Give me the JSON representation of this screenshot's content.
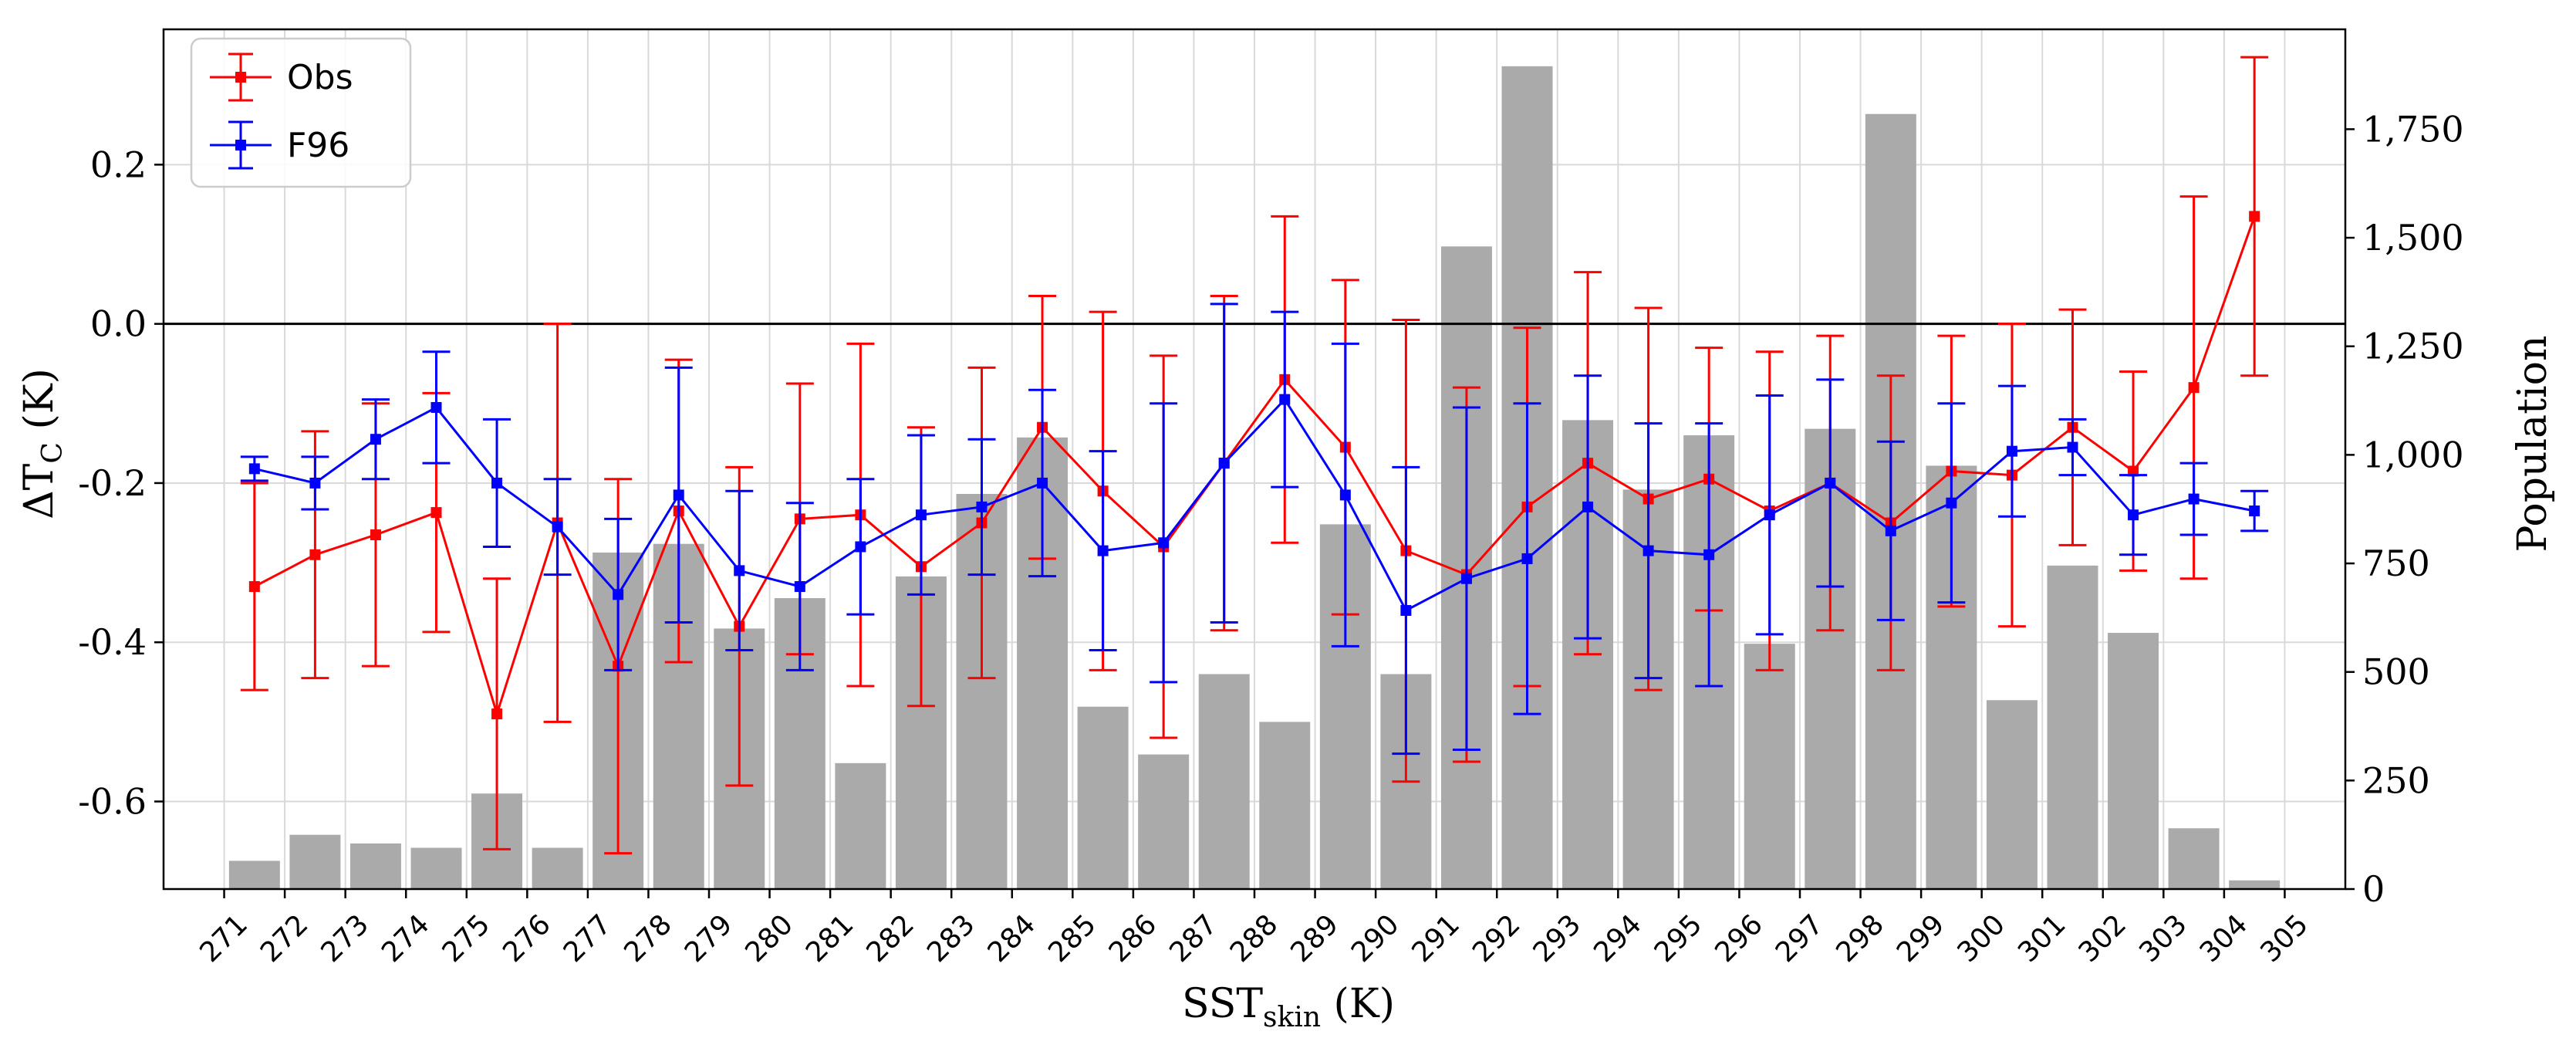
{
  "chart_data": {
    "type": "bar+line",
    "xlabel_main": "SST",
    "xlabel_sub": "skin",
    "xlabel_unit": " (K)",
    "ylabel_main": "ΔT",
    "ylabel_sub": "C",
    "ylabel_unit": " (K)",
    "y2label": "Population",
    "x_ticks": [
      271,
      272,
      273,
      274,
      275,
      276,
      277,
      278,
      279,
      280,
      281,
      282,
      283,
      284,
      285,
      286,
      287,
      288,
      289,
      290,
      291,
      292,
      293,
      294,
      295,
      296,
      297,
      298,
      299,
      300,
      301,
      302,
      303,
      304,
      305
    ],
    "xlim": [
      270,
      306
    ],
    "ylim": [
      -0.71,
      0.37
    ],
    "y_ticks": [
      -0.6,
      -0.4,
      -0.2,
      0.0,
      0.2
    ],
    "y_tick_labels": [
      "-0.6",
      "-0.4",
      "-0.2",
      "0.0",
      "0.2"
    ],
    "y2lim": [
      0,
      1980
    ],
    "y2_ticks": [
      0,
      250,
      500,
      750,
      1000,
      1250,
      1500,
      1750
    ],
    "y2_tick_labels": [
      "0",
      "250",
      "500",
      "750",
      "1,000",
      "1,250",
      "1,500",
      "1,750"
    ],
    "zero_line": 0.0,
    "grid": true,
    "legend_position": "top-left",
    "bars": {
      "x": [
        271.5,
        272.5,
        273.5,
        274.5,
        275.5,
        276.5,
        277.5,
        278.5,
        279.5,
        280.5,
        281.5,
        282.5,
        283.5,
        284.5,
        285.5,
        286.5,
        287.5,
        288.5,
        289.5,
        290.5,
        291.5,
        292.5,
        293.5,
        294.5,
        295.5,
        296.5,
        297.5,
        298.5,
        299.5,
        300.5,
        301.5,
        302.5,
        303.5,
        304.5
      ],
      "population": [
        65,
        125,
        105,
        95,
        220,
        95,
        775,
        795,
        600,
        670,
        290,
        720,
        910,
        1040,
        420,
        310,
        495,
        385,
        840,
        495,
        1480,
        1895,
        1080,
        920,
        1045,
        565,
        1060,
        1785,
        975,
        435,
        745,
        590,
        140,
        20
      ],
      "color": "#aaaaaa"
    },
    "series": [
      {
        "name": "Obs",
        "color": "#ff0000",
        "x": [
          271.5,
          272.5,
          273.5,
          274.5,
          275.5,
          276.5,
          277.5,
          278.5,
          279.5,
          280.5,
          281.5,
          282.5,
          283.5,
          284.5,
          285.5,
          286.5,
          287.5,
          288.5,
          289.5,
          290.5,
          291.5,
          292.5,
          293.5,
          294.5,
          295.5,
          296.5,
          297.5,
          298.5,
          299.5,
          300.5,
          301.5,
          302.5,
          303.5,
          304.5
        ],
        "y": [
          -0.33,
          -0.29,
          -0.265,
          -0.237,
          -0.49,
          -0.25,
          -0.43,
          -0.235,
          -0.38,
          -0.245,
          -0.24,
          -0.305,
          -0.25,
          -0.13,
          -0.21,
          -0.28,
          -0.175,
          -0.07,
          -0.155,
          -0.285,
          -0.315,
          -0.23,
          -0.175,
          -0.22,
          -0.195,
          -0.235,
          -0.2,
          -0.25,
          -0.185,
          -0.19,
          -0.13,
          -0.185,
          -0.08,
          0.135
        ],
        "err": [
          0.13,
          0.155,
          0.165,
          0.15,
          0.17,
          0.25,
          0.235,
          0.19,
          0.2,
          0.17,
          0.215,
          0.175,
          0.195,
          0.165,
          0.225,
          0.24,
          0.21,
          0.205,
          0.21,
          0.29,
          0.235,
          0.225,
          0.24,
          0.24,
          0.165,
          0.2,
          0.185,
          0.185,
          0.17,
          0.19,
          0.148,
          0.125,
          0.24,
          0.2
        ]
      },
      {
        "name": "F96",
        "color": "#0000ff",
        "x": [
          271.5,
          272.5,
          273.5,
          274.5,
          275.5,
          276.5,
          277.5,
          278.5,
          279.5,
          280.5,
          281.5,
          282.5,
          283.5,
          284.5,
          285.5,
          286.5,
          287.5,
          288.5,
          289.5,
          290.5,
          291.5,
          292.5,
          293.5,
          294.5,
          295.5,
          296.5,
          297.5,
          298.5,
          299.5,
          300.5,
          301.5,
          302.5,
          303.5,
          304.5
        ],
        "y": [
          -0.182,
          -0.2,
          -0.145,
          -0.105,
          -0.2,
          -0.255,
          -0.34,
          -0.215,
          -0.31,
          -0.33,
          -0.28,
          -0.24,
          -0.23,
          -0.2,
          -0.285,
          -0.275,
          -0.175,
          -0.095,
          -0.215,
          -0.36,
          -0.32,
          -0.295,
          -0.23,
          -0.285,
          -0.29,
          -0.24,
          -0.2,
          -0.26,
          -0.225,
          -0.16,
          -0.155,
          -0.24,
          -0.22,
          -0.235
        ],
        "err": [
          0.015,
          0.033,
          0.05,
          0.07,
          0.08,
          0.06,
          0.095,
          0.16,
          0.1,
          0.105,
          0.085,
          0.1,
          0.085,
          0.117,
          0.125,
          0.175,
          0.2,
          0.11,
          0.19,
          0.18,
          0.215,
          0.195,
          0.165,
          0.16,
          0.165,
          0.15,
          0.13,
          0.112,
          0.125,
          0.082,
          0.035,
          0.05,
          0.045,
          0.025
        ]
      }
    ]
  }
}
